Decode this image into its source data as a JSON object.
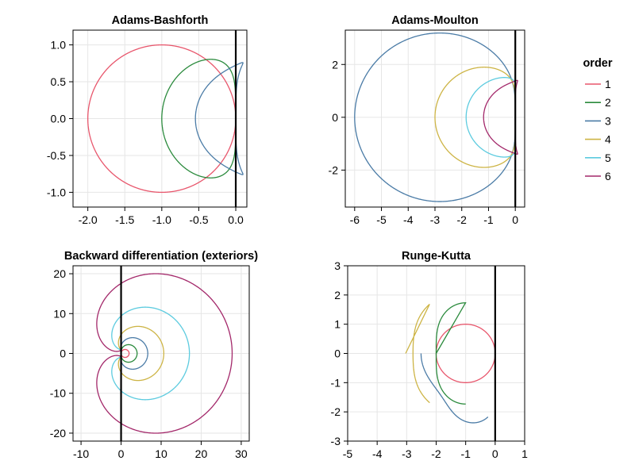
{
  "colors": {
    "1": "#e8566c",
    "2": "#2a8a3c",
    "3": "#4a7ba6",
    "4": "#cdb445",
    "5": "#5ccbdf",
    "6": "#a3286a"
  },
  "legend": {
    "title": "order",
    "entries": [
      {
        "key": "1",
        "label": "1"
      },
      {
        "key": "2",
        "label": "2"
      },
      {
        "key": "3",
        "label": "3"
      },
      {
        "key": "4",
        "label": "4"
      },
      {
        "key": "5",
        "label": "5"
      },
      {
        "key": "6",
        "label": "6"
      }
    ]
  },
  "chart_data": [
    {
      "type": "line",
      "title": "Adams-Bashforth",
      "xlim": [
        -2.2,
        0.15
      ],
      "ylim": [
        -1.2,
        1.2
      ],
      "xticks": [
        -2.0,
        -1.5,
        -1.0,
        -0.5,
        0.0
      ],
      "xticklabels": [
        "-2.0",
        "-1.5",
        "-1.0",
        "-0.5",
        "0.0"
      ],
      "yticks": [
        -1.0,
        -0.5,
        0.0,
        0.5,
        1.0
      ],
      "yticklabels": [
        "-1.0",
        "-0.5",
        "0.0",
        "0.5",
        "1.0"
      ],
      "vline_x": 0,
      "grid": true,
      "series": [
        {
          "key": "1",
          "method": "AB",
          "order": 1
        },
        {
          "key": "2",
          "method": "AB",
          "order": 2
        },
        {
          "key": "3",
          "method": "AB",
          "order": 3
        }
      ]
    },
    {
      "type": "line",
      "title": "Adams-Moulton",
      "xlim": [
        -6.35,
        0.35
      ],
      "ylim": [
        -3.4,
        3.3
      ],
      "xticks": [
        -6,
        -5,
        -4,
        -3,
        -2,
        -1,
        0
      ],
      "xticklabels": [
        "-6",
        "-5",
        "-4",
        "-3",
        "-2",
        "-1",
        "0"
      ],
      "yticks": [
        -2,
        0,
        2
      ],
      "yticklabels": [
        "-2",
        "0",
        "2"
      ],
      "vline_x": 0,
      "grid": true,
      "series": [
        {
          "key": "3",
          "method": "AM",
          "order": 3
        },
        {
          "key": "4",
          "method": "AM",
          "order": 4
        },
        {
          "key": "5",
          "method": "AM",
          "order": 5
        },
        {
          "key": "6",
          "method": "AM",
          "order": 6
        }
      ]
    },
    {
      "type": "line",
      "title": "Backward differentiation (exteriors)",
      "xlim": [
        -12,
        32
      ],
      "ylim": [
        -22,
        22
      ],
      "xticks": [
        -10,
        0,
        10,
        20,
        30
      ],
      "xticklabels": [
        "-10",
        "0",
        "10",
        "20",
        "30"
      ],
      "yticks": [
        -20,
        -10,
        0,
        10,
        20
      ],
      "yticklabels": [
        "-20",
        "-10",
        "0",
        "10",
        "20"
      ],
      "vline_x": 0,
      "grid": true,
      "series": [
        {
          "key": "1",
          "method": "BDF",
          "order": 1
        },
        {
          "key": "2",
          "method": "BDF",
          "order": 2
        },
        {
          "key": "3",
          "method": "BDF",
          "order": 3
        },
        {
          "key": "4",
          "method": "BDF",
          "order": 4
        },
        {
          "key": "5",
          "method": "BDF",
          "order": 5
        },
        {
          "key": "6",
          "method": "BDF",
          "order": 6
        }
      ]
    },
    {
      "type": "line",
      "title": "Runge-Kutta",
      "xlim": [
        -5,
        1
      ],
      "ylim": [
        -3,
        3
      ],
      "xticks": [
        -5,
        -4,
        -3,
        -2,
        -1,
        0,
        1
      ],
      "xticklabels": [
        "-5",
        "-4",
        "-3",
        "-2",
        "-1",
        "0",
        "1"
      ],
      "yticks": [
        -3,
        -2,
        -1,
        0,
        1,
        2,
        3
      ],
      "yticklabels": [
        "-3",
        "-2",
        "-1",
        "0",
        "1",
        "2",
        "3"
      ],
      "vline_x": 0,
      "grid": true,
      "series": [
        {
          "key": "1",
          "method": "RK",
          "order": 1
        },
        {
          "key": "2",
          "method": "RK",
          "order": 2
        },
        {
          "key": "3",
          "method": "RK",
          "order": 3
        },
        {
          "key": "4",
          "method": "RK",
          "order": 4
        }
      ]
    }
  ]
}
